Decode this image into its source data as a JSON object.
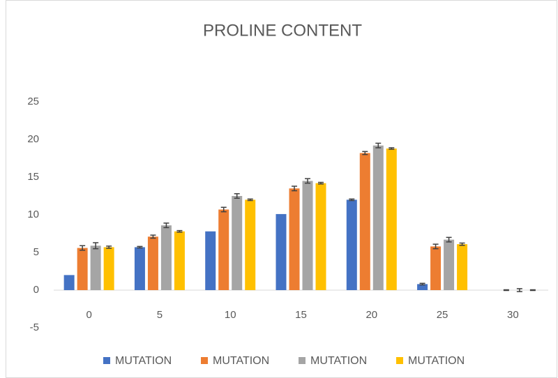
{
  "chart_data": {
    "type": "bar",
    "title": "PROLINE CONTENT",
    "categories": [
      "0",
      "5",
      "10",
      "15",
      "20",
      "25",
      "30"
    ],
    "series": [
      {
        "name": "MUTATION",
        "color": "#4472c4",
        "values": [
          2.0,
          5.7,
          7.8,
          10.1,
          12.0,
          0.8,
          0
        ],
        "errors": [
          0,
          0.1,
          0,
          0,
          0.1,
          0.1,
          0
        ]
      },
      {
        "name": "MUTATION",
        "color": "#ed7d31",
        "values": [
          5.6,
          7.1,
          10.7,
          13.5,
          18.2,
          5.8,
          0
        ],
        "errors": [
          0.3,
          0.2,
          0.3,
          0.3,
          0.2,
          0.3,
          0.05
        ]
      },
      {
        "name": "MUTATION",
        "color": "#a5a5a5",
        "values": [
          5.9,
          8.6,
          12.5,
          14.5,
          19.2,
          6.7,
          0
        ],
        "errors": [
          0.4,
          0.3,
          0.3,
          0.3,
          0.3,
          0.3,
          0.2
        ]
      },
      {
        "name": "MUTATION",
        "color": "#ffc000",
        "values": [
          5.7,
          7.8,
          12.0,
          14.2,
          18.8,
          6.1,
          0
        ],
        "errors": [
          0.15,
          0.1,
          0.1,
          0.1,
          0.1,
          0.15,
          0.05
        ]
      }
    ],
    "ylim": [
      -5,
      25
    ],
    "yticks": [
      -5,
      0,
      5,
      10,
      15,
      20,
      25
    ],
    "grid": false,
    "legend": "bottom"
  }
}
